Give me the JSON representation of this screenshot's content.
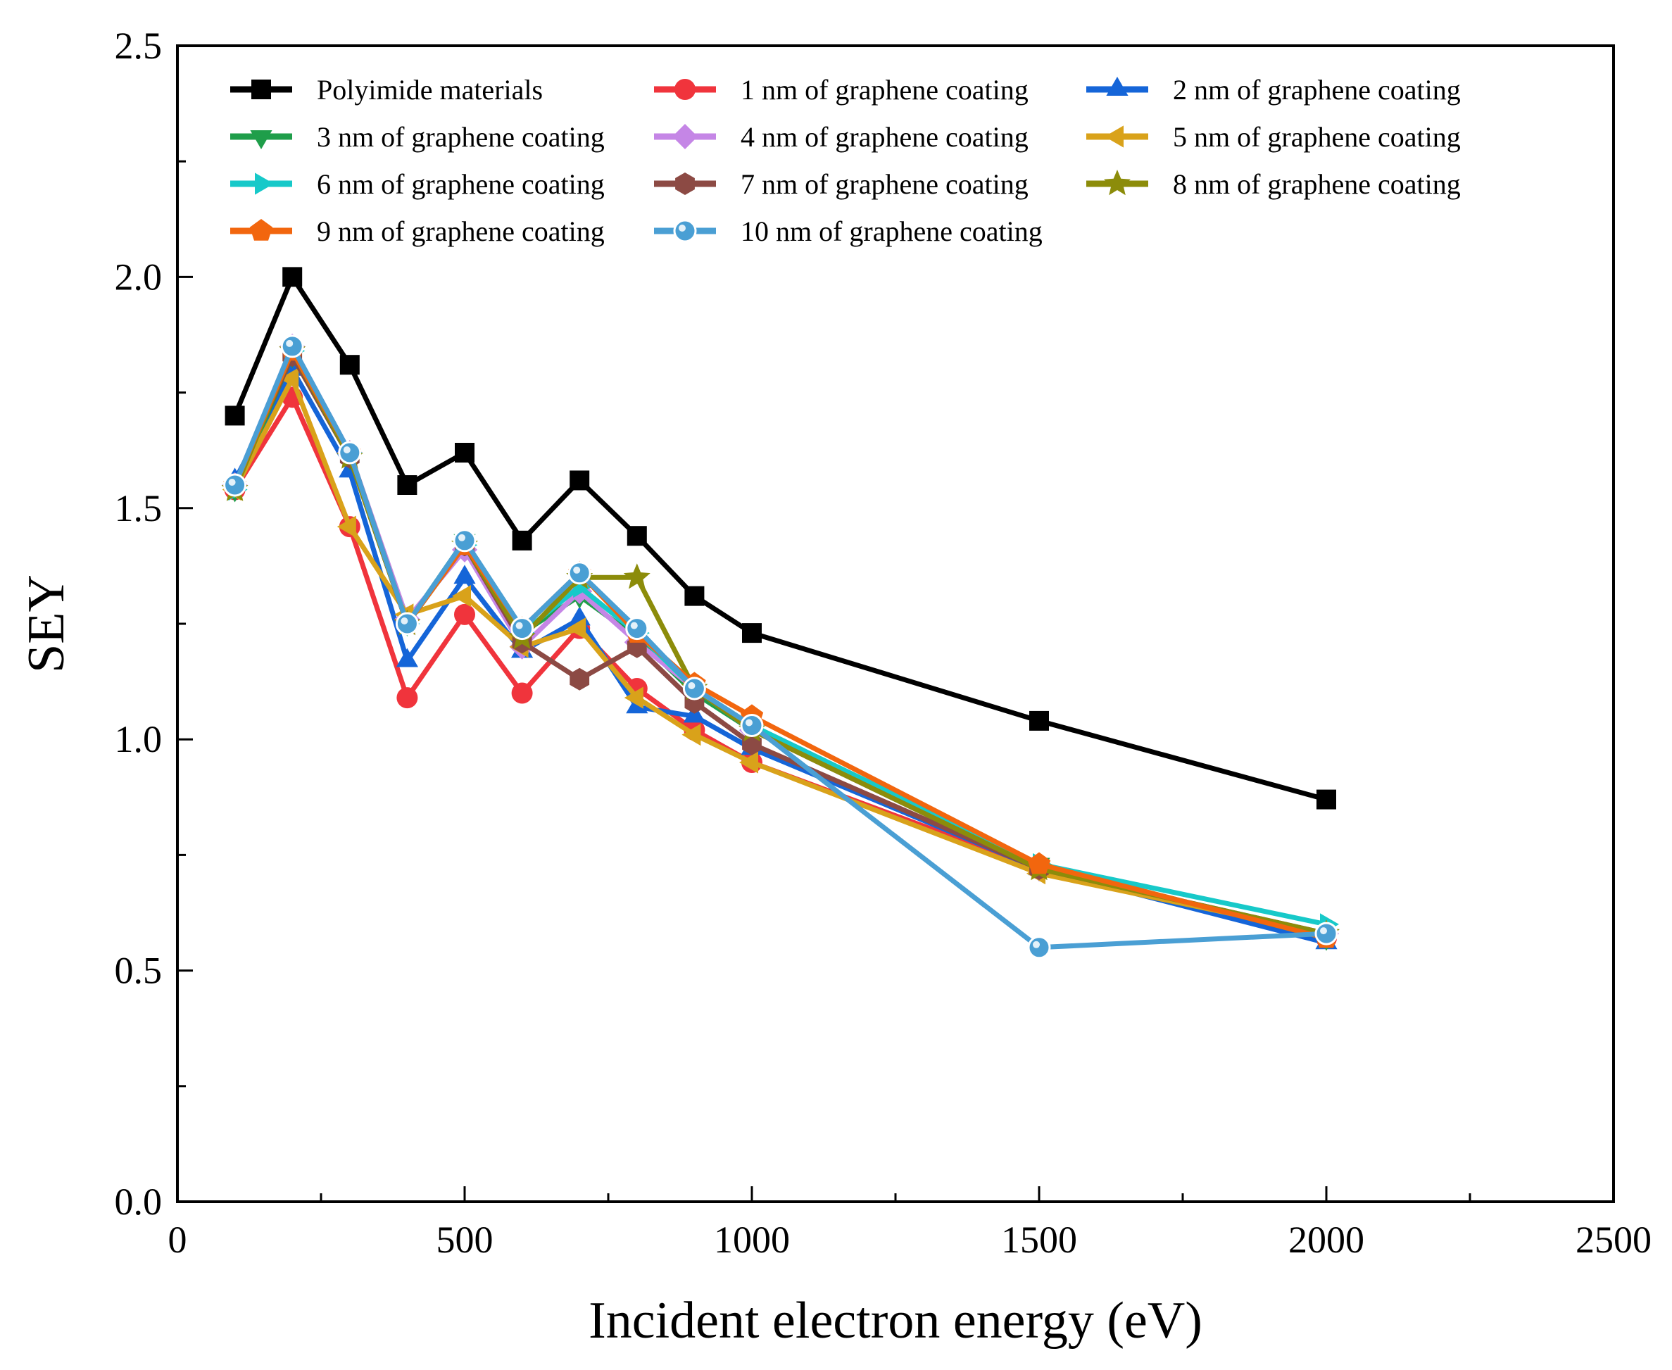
{
  "chart_data": {
    "type": "line",
    "title": "",
    "xlabel": "Incident electron energy (eV)",
    "ylabel": "SEY",
    "xlim": [
      0,
      2500
    ],
    "ylim": [
      0,
      2.5
    ],
    "grid": false,
    "legend_position": "top",
    "x_ticks": [
      0,
      500,
      1000,
      1500,
      2000,
      2500
    ],
    "x_tick_labels": [
      "0",
      "500",
      "1000",
      "1500",
      "2000",
      "2500"
    ],
    "y_ticks": [
      0,
      0.5,
      1.0,
      1.5,
      2.0,
      2.5
    ],
    "y_tick_labels": [
      "0.0",
      "0.5",
      "1.0",
      "1.5",
      "2.0",
      "2.5"
    ],
    "x": [
      100,
      200,
      300,
      400,
      500,
      600,
      700,
      800,
      900,
      1000,
      1500,
      2000
    ],
    "series": [
      {
        "name": "Polyimide materials",
        "color": "#000000",
        "marker": "square",
        "values": [
          1.7,
          2.0,
          1.81,
          1.55,
          1.62,
          1.43,
          1.56,
          1.44,
          1.31,
          1.23,
          1.04,
          0.87
        ]
      },
      {
        "name": "1 nm of graphene coating",
        "color": "#f0343c",
        "marker": "circle",
        "values": [
          1.54,
          1.74,
          1.46,
          1.09,
          1.27,
          1.1,
          1.24,
          1.11,
          1.02,
          0.95,
          0.72,
          0.57
        ]
      },
      {
        "name": "2 nm of graphene coating",
        "color": "#1565d8",
        "marker": "triangle-up",
        "values": [
          1.56,
          1.8,
          1.58,
          1.17,
          1.35,
          1.19,
          1.26,
          1.07,
          1.05,
          0.98,
          0.72,
          0.56
        ]
      },
      {
        "name": "3 nm of graphene coating",
        "color": "#1f9e4a",
        "marker": "triangle-down",
        "values": [
          1.54,
          1.83,
          1.61,
          1.25,
          1.43,
          1.23,
          1.31,
          1.22,
          1.1,
          1.02,
          0.73,
          0.57
        ]
      },
      {
        "name": "4 nm of graphene coating",
        "color": "#c586e6",
        "marker": "diamond",
        "values": [
          1.55,
          1.85,
          1.62,
          1.26,
          1.41,
          1.2,
          1.32,
          1.21,
          1.11,
          1.02,
          0.72,
          0.58
        ]
      },
      {
        "name": "5 nm of graphene coating",
        "color": "#d9a21a",
        "marker": "triangle-left",
        "values": [
          1.54,
          1.78,
          1.46,
          1.27,
          1.31,
          1.2,
          1.24,
          1.09,
          1.01,
          0.95,
          0.71,
          0.58
        ]
      },
      {
        "name": "6 nm of graphene coating",
        "color": "#17c9c9",
        "marker": "triangle-right",
        "values": [
          1.54,
          1.84,
          1.62,
          1.25,
          1.42,
          1.23,
          1.33,
          1.23,
          1.11,
          1.03,
          0.73,
          0.6
        ]
      },
      {
        "name": "7 nm of graphene coating",
        "color": "#8c4a44",
        "marker": "hexagon",
        "values": [
          1.55,
          1.83,
          1.61,
          1.25,
          1.42,
          1.21,
          1.13,
          1.2,
          1.08,
          0.99,
          0.72,
          0.58
        ]
      },
      {
        "name": "8 nm of graphene coating",
        "color": "#8c8c0a",
        "marker": "star",
        "values": [
          1.54,
          1.84,
          1.61,
          1.25,
          1.42,
          1.22,
          1.35,
          1.35,
          1.11,
          1.02,
          0.72,
          0.58
        ]
      },
      {
        "name": "9 nm of graphene coating",
        "color": "#f2660e",
        "marker": "pentagon",
        "values": [
          1.55,
          1.84,
          1.62,
          1.25,
          1.42,
          1.24,
          1.36,
          1.23,
          1.12,
          1.05,
          0.73,
          0.57
        ]
      },
      {
        "name": "10 nm of graphene coating",
        "color": "#4a9fd4",
        "marker": "sphere",
        "values": [
          1.55,
          1.85,
          1.62,
          1.25,
          1.43,
          1.24,
          1.36,
          1.24,
          1.11,
          1.03,
          0.55,
          0.58
        ]
      }
    ]
  }
}
